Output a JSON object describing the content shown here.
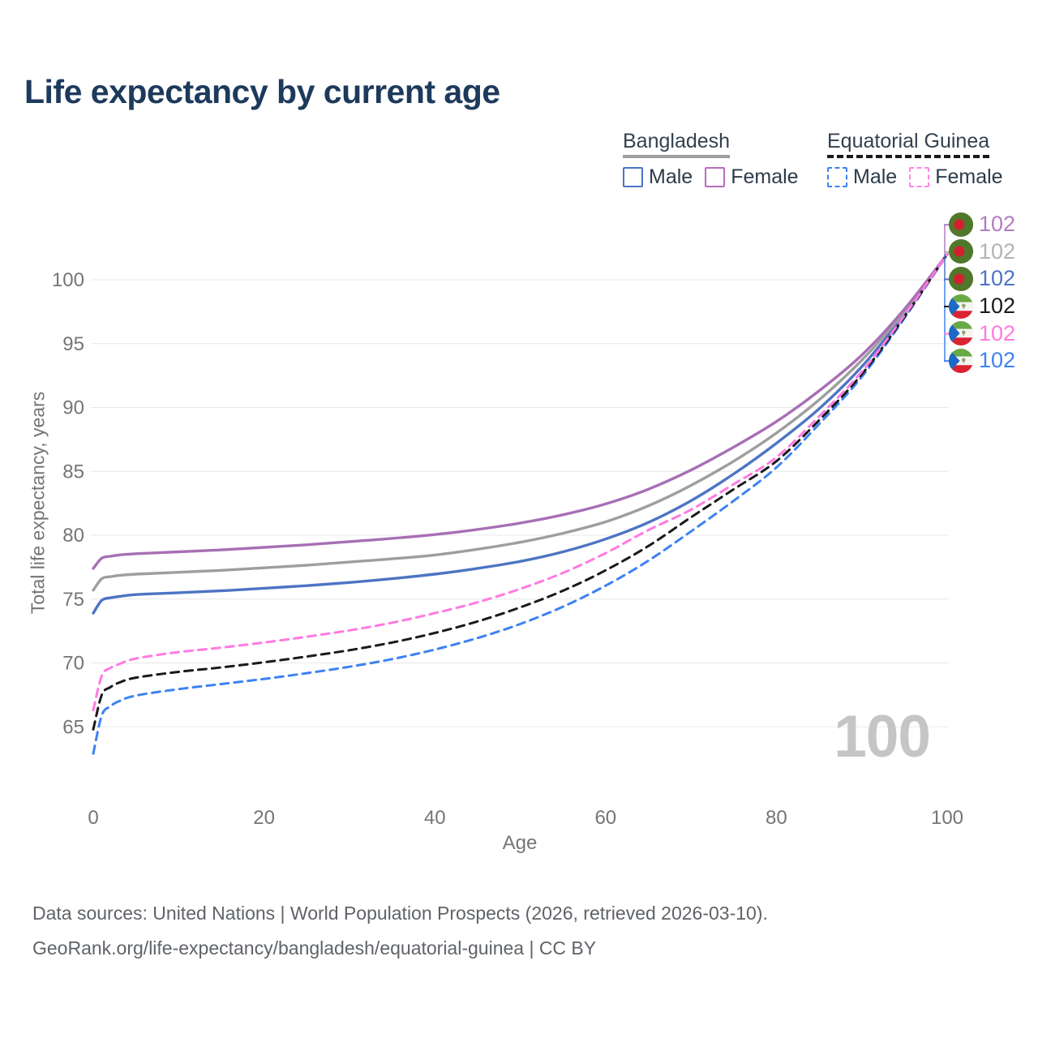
{
  "header": {
    "title": "Life expectancy by current age"
  },
  "legend": {
    "groups": [
      {
        "title": "Bangladesh",
        "line_style": "solid",
        "line_color": "#9e9e9e",
        "items": [
          {
            "label": "Male",
            "color": "#4d74c4",
            "dash": "solid"
          },
          {
            "label": "Female",
            "color": "#bb6bbd",
            "dash": "solid"
          }
        ]
      },
      {
        "title": "Equatorial Guinea",
        "line_style": "dashed",
        "line_color": "#1a1a1a",
        "items": [
          {
            "label": "Male",
            "color": "#3d82f2",
            "dash": "dashed"
          },
          {
            "label": "Female",
            "color": "#ff84e8",
            "dash": "dashed"
          }
        ]
      }
    ]
  },
  "watermark": "100",
  "end_labels": [
    {
      "value": "102",
      "color": "#b07fc2",
      "flag": "bangladesh"
    },
    {
      "value": "102",
      "color": "#b3b3b3",
      "flag": "bangladesh"
    },
    {
      "value": "102",
      "color": "#4d74c4",
      "flag": "bangladesh"
    },
    {
      "value": "102",
      "color": "#1a1a1a",
      "flag": "equatorial-guinea"
    },
    {
      "value": "102",
      "color": "#ff7ae1",
      "flag": "equatorial-guinea"
    },
    {
      "value": "102",
      "color": "#3d82f2",
      "flag": "equatorial-guinea"
    }
  ],
  "footer": {
    "line1": "Data sources: United Nations | World Population Prospects (2026, retrieved 2026-03-10).",
    "line2": "GeoRank.org/life-expectancy/bangladesh/equatorial-guinea | CC BY"
  },
  "chart_data": {
    "type": "line",
    "title": "Life expectancy by current age",
    "xlabel": "Age",
    "ylabel": "Total life expectancy, years",
    "x_ticks": [
      0,
      20,
      40,
      60,
      80,
      100
    ],
    "y_ticks": [
      65,
      70,
      75,
      80,
      85,
      90,
      95,
      100
    ],
    "xlim": [
      0,
      100
    ],
    "ylim": [
      62,
      103
    ],
    "grid": "horizontal",
    "legend_position": "top-right",
    "ages": [
      0,
      1,
      2,
      3,
      5,
      10,
      15,
      20,
      25,
      30,
      35,
      40,
      45,
      50,
      55,
      60,
      65,
      70,
      75,
      80,
      85,
      90,
      95,
      100
    ],
    "series": [
      {
        "name": "Bangladesh Male",
        "country": "Bangladesh",
        "sex": "Male",
        "color": "#4d74c4",
        "dash": "solid",
        "values": [
          73.9,
          74.9,
          75.1,
          75.2,
          75.35,
          75.5,
          75.65,
          75.85,
          76.05,
          76.3,
          76.6,
          76.95,
          77.4,
          77.95,
          78.7,
          79.7,
          81.0,
          82.7,
          84.8,
          87.2,
          89.9,
          93.2,
          97.3,
          102
        ]
      },
      {
        "name": "Bangladesh Both sexes",
        "country": "Bangladesh",
        "sex": "Both",
        "color": "#9e9e9e",
        "dash": "solid",
        "values": [
          75.7,
          76.6,
          76.75,
          76.85,
          76.95,
          77.1,
          77.25,
          77.45,
          77.65,
          77.9,
          78.15,
          78.45,
          78.9,
          79.45,
          80.15,
          81.05,
          82.3,
          83.9,
          85.8,
          88.0,
          90.6,
          93.7,
          97.5,
          102
        ]
      },
      {
        "name": "Bangladesh Female",
        "country": "Bangladesh",
        "sex": "Female",
        "color": "#a76fb5",
        "dash": "solid",
        "values": [
          77.4,
          78.2,
          78.35,
          78.45,
          78.55,
          78.7,
          78.85,
          79.05,
          79.25,
          79.5,
          79.75,
          80.05,
          80.45,
          80.95,
          81.6,
          82.45,
          83.6,
          85.1,
          86.9,
          88.9,
          91.3,
          94.1,
          97.7,
          102
        ]
      },
      {
        "name": "Equatorial Guinea Male",
        "country": "Equatorial Guinea",
        "sex": "Male",
        "color": "#3d82f2",
        "dash": "dashed",
        "values": [
          62.9,
          65.9,
          66.6,
          67.0,
          67.45,
          67.95,
          68.35,
          68.75,
          69.2,
          69.7,
          70.3,
          71.05,
          71.95,
          73.05,
          74.4,
          76.05,
          78.0,
          80.3,
          82.7,
          85.3,
          88.7,
          92.4,
          97.0,
          102
        ]
      },
      {
        "name": "Equatorial Guinea Both sexes",
        "country": "Equatorial Guinea",
        "sex": "Both",
        "color": "#1a1a1a",
        "dash": "dashed",
        "values": [
          64.8,
          67.5,
          68.1,
          68.45,
          68.85,
          69.3,
          69.65,
          70.05,
          70.5,
          71.0,
          71.6,
          72.35,
          73.25,
          74.35,
          75.65,
          77.25,
          79.15,
          81.4,
          83.6,
          85.8,
          89.0,
          92.6,
          97.1,
          102
        ]
      },
      {
        "name": "Equatorial Guinea Female",
        "country": "Equatorial Guinea",
        "sex": "Female",
        "color": "#ff7ae1",
        "dash": "dashed",
        "values": [
          66.3,
          69.0,
          69.6,
          69.9,
          70.35,
          70.85,
          71.2,
          71.6,
          72.05,
          72.55,
          73.15,
          73.9,
          74.75,
          75.8,
          77.05,
          78.6,
          80.4,
          82.0,
          84.0,
          86.1,
          89.3,
          92.8,
          97.2,
          102
        ]
      }
    ]
  }
}
